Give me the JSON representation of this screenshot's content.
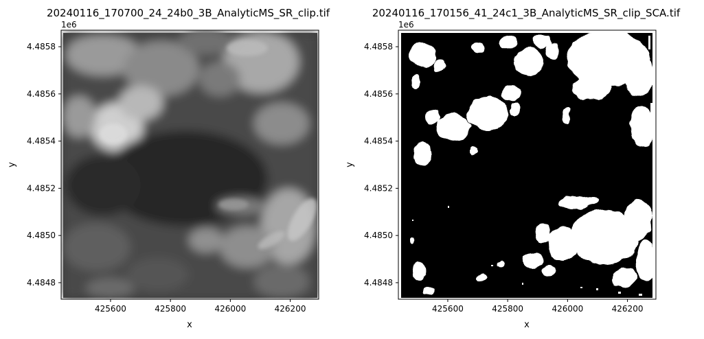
{
  "chart_data": [
    {
      "type": "heatmap",
      "title": "20240116_170700_24_24b0_3B_AnalyticMS_SR_clip.tif",
      "xlabel": "x",
      "ylabel": "y",
      "colormap": "gray",
      "xlim": [
        425435,
        426295
      ],
      "ylim": [
        4484730,
        4485870
      ],
      "x_ticks": [
        425600,
        425800,
        426000,
        426200
      ],
      "x_tick_labels": [
        "425600",
        "425800",
        "426000",
        "426200"
      ],
      "y_ticks": [
        4484800,
        4485000,
        4485200,
        4485400,
        4485600,
        4485800
      ],
      "y_tick_labels": [
        "4.4848",
        "4.4850",
        "4.4852",
        "4.4854",
        "4.4856",
        "4.4858"
      ],
      "y_offset_label": "1e6"
    },
    {
      "type": "heatmap",
      "title": "20240116_170156_41_24c1_3B_AnalyticMS_SR_clip_SCA.tif",
      "xlabel": "x",
      "ylabel": "y",
      "colormap": "binary (black / white snow mask)",
      "xlim": [
        425435,
        426295
      ],
      "ylim": [
        4484730,
        4485870
      ],
      "x_ticks": [
        425600,
        425800,
        426000,
        426200
      ],
      "x_tick_labels": [
        "425600",
        "425800",
        "426000",
        "426200"
      ],
      "y_ticks": [
        4484800,
        4485000,
        4485200,
        4485400,
        4485600,
        4485800
      ],
      "y_tick_labels": [
        "4.4848",
        "4.4850",
        "4.4852",
        "4.4854",
        "4.4856",
        "4.4858"
      ],
      "y_offset_label": "1e6"
    }
  ]
}
